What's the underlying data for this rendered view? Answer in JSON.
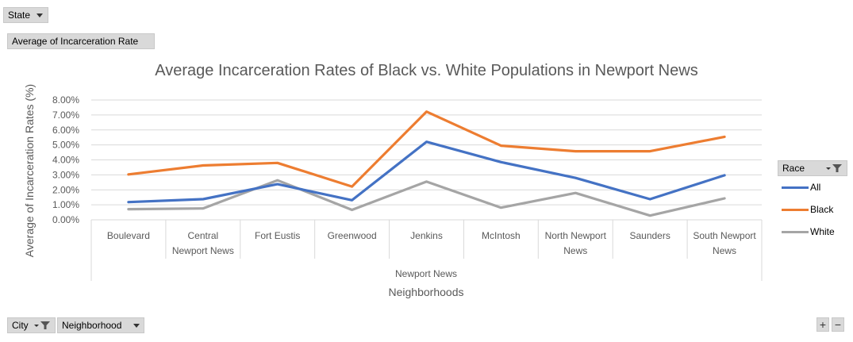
{
  "pivot": {
    "state_filter": "State",
    "value_field": "Average of Incarceration Rate",
    "row_field_city": "City",
    "row_field_neighborhood": "Neighborhood",
    "legend_field": "Race",
    "zoom_in": "+",
    "zoom_out": "−"
  },
  "chart_data": {
    "type": "line",
    "title": "Average Incarceration Rates of Black vs. White Populations in Newport News",
    "ylabel": "Average of Incarceration Rates (%)",
    "xlabel": "Neighborhoods",
    "group_label": "Newport News",
    "ylim": [
      0,
      0.08
    ],
    "yticks": [
      "0.00%",
      "1.00%",
      "2.00%",
      "3.00%",
      "4.00%",
      "5.00%",
      "6.00%",
      "7.00%",
      "8.00%"
    ],
    "categories": [
      "Boulevard",
      "Central Newport News",
      "Fort Eustis",
      "Greenwood",
      "Jenkins",
      "McIntosh",
      "North Newport News",
      "Saunders",
      "South Newport News"
    ],
    "category_lines": [
      [
        "Boulevard"
      ],
      [
        "Central",
        "Newport News"
      ],
      [
        "Fort Eustis"
      ],
      [
        "Greenwood"
      ],
      [
        "Jenkins"
      ],
      [
        "McIntosh"
      ],
      [
        "North Newport",
        "News"
      ],
      [
        "Saunders"
      ],
      [
        "South Newport",
        "News"
      ]
    ],
    "series": [
      {
        "name": "All",
        "color": "#4472c4",
        "values": [
          0.0118,
          0.0138,
          0.0238,
          0.0131,
          0.0521,
          0.0385,
          0.028,
          0.0138,
          0.0297
        ]
      },
      {
        "name": "Black",
        "color": "#ed7d31",
        "values": [
          0.0303,
          0.0363,
          0.038,
          0.0222,
          0.0722,
          0.0495,
          0.0458,
          0.0458,
          0.0554
        ]
      },
      {
        "name": "White",
        "color": "#a5a5a5",
        "values": [
          0.0071,
          0.0076,
          0.0264,
          0.0066,
          0.0255,
          0.0081,
          0.0179,
          0.0028,
          0.0143
        ]
      }
    ],
    "grid": true,
    "legend_position": "right"
  }
}
